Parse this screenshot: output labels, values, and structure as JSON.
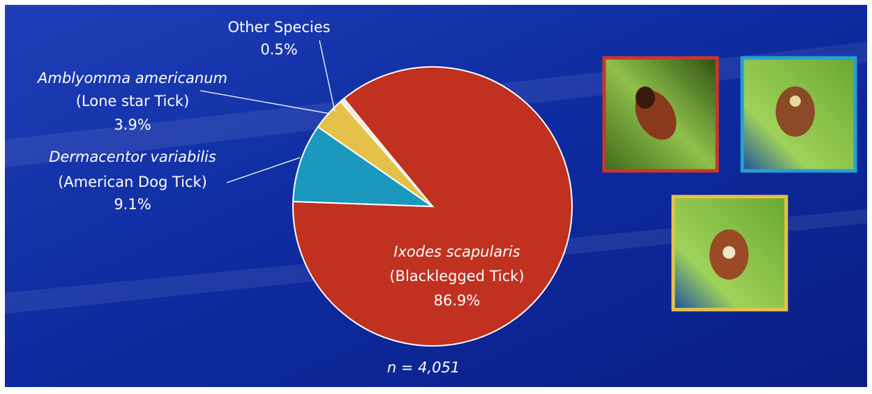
{
  "chart_data": {
    "type": "pie",
    "categories": [
      "Ixodes scapularis",
      "Dermacentor variabilis",
      "Amblyomma americanum",
      "Other Species"
    ],
    "common_names": [
      "(Blacklegged Tick)",
      "(American Dog Tick)",
      "(Lone star Tick)",
      null
    ],
    "values": [
      86.9,
      9.1,
      3.9,
      0.5
    ],
    "value_labels": [
      "86.9%",
      "9.1%",
      "3.9%",
      "0.5%"
    ],
    "colors": [
      "#c0311f",
      "#1b98bd",
      "#e6c14a",
      "#f3ead2"
    ],
    "note": "n = 4,051"
  }
}
